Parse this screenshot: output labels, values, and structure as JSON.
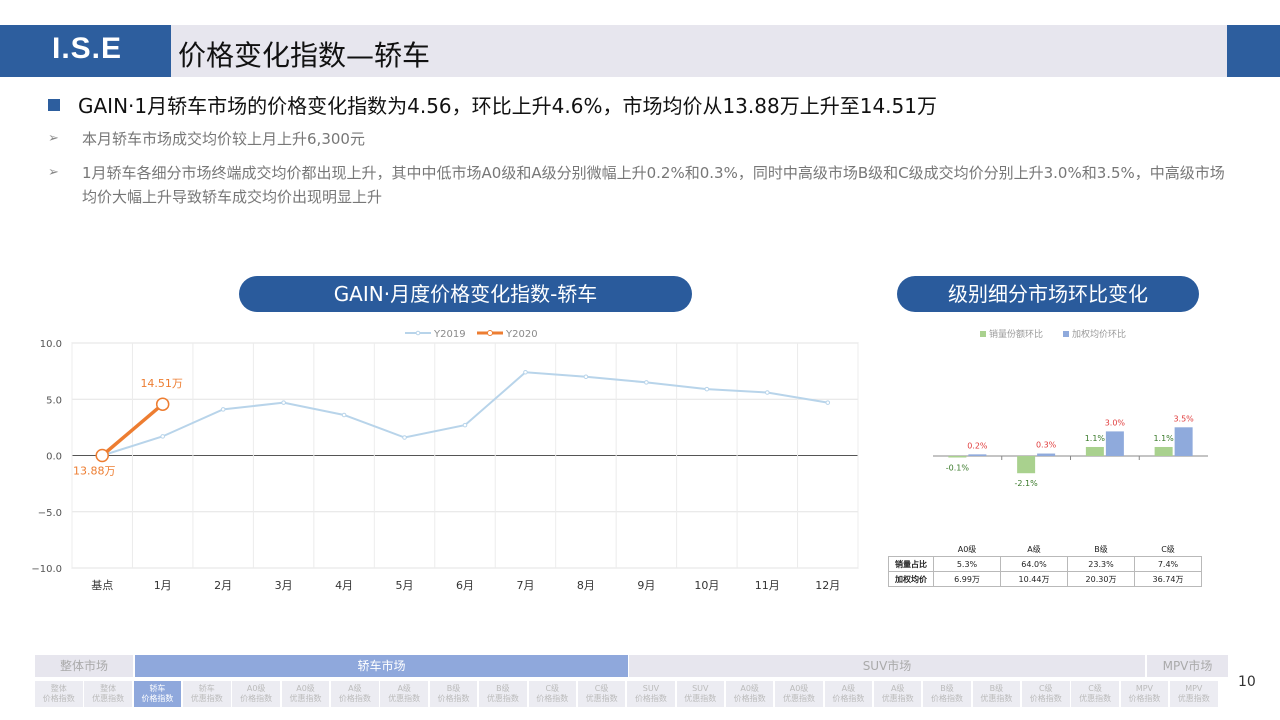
{
  "header": {
    "logo": "I.S.E",
    "title": "价格变化指数—轿车"
  },
  "bullets": {
    "main": "GAIN·1月轿车市场的价格变化指数为4.56，环比上升4.6%，市场均价从13.88万上升至14.51万",
    "sub1": "本月轿车市场成交均价较上月上升6,300元",
    "sub2": "1月轿车各细分市场终端成交均价都出现上升，其中中低市场A0级和A级分别微幅上升0.2%和0.3%，同时中高级市场B级和C级成交均价分别上升3.0%和3.5%，中高级市场均价大幅上升导致轿车成交均价出现明显上升",
    "arrow": "➢"
  },
  "pills": {
    "left": "GAIN·月度价格变化指数-轿车",
    "right": "级别细分市场环比变化"
  },
  "chart_data": [
    {
      "type": "line",
      "x": [
        "基点",
        "1月",
        "2月",
        "3月",
        "4月",
        "5月",
        "6月",
        "7月",
        "8月",
        "9月",
        "10月",
        "11月",
        "12月"
      ],
      "ylim": [
        -10,
        10
      ],
      "yticks": [
        "10.0",
        "5.0",
        "0.0",
        "−5.0",
        "−10.0"
      ],
      "series": [
        {
          "name": "Y2019",
          "color": "#b8d4ea",
          "values": [
            0,
            1.7,
            4.1,
            4.7,
            3.6,
            1.6,
            2.7,
            7.4,
            7.0,
            6.5,
            5.9,
            5.6,
            4.7
          ]
        },
        {
          "name": "Y2020",
          "color": "#ed7d31",
          "values": [
            0,
            4.56,
            null,
            null,
            null,
            null,
            null,
            null,
            null,
            null,
            null,
            null,
            null
          ]
        }
      ],
      "annotations": {
        "start": "13.88万",
        "end": "14.51万"
      },
      "grid": true
    },
    {
      "type": "bar",
      "categories": [
        "A0级",
        "A级",
        "B级",
        "C级"
      ],
      "series": [
        {
          "name": "销量份额环比",
          "color": "#a9d18e",
          "values": [
            -0.1,
            -2.1,
            1.1,
            1.1
          ],
          "labels": [
            "-0.1%",
            "-2.1%",
            "1.1%",
            "1.1%"
          ]
        },
        {
          "name": "加权均价环比",
          "color": "#8faadc",
          "values": [
            0.2,
            0.3,
            3.0,
            3.5
          ],
          "labels": [
            "0.2%",
            "0.3%",
            "3.0%",
            "3.5%"
          ]
        }
      ],
      "table": {
        "rows": [
          {
            "label": "销量占比",
            "values": [
              "5.3%",
              "64.0%",
              "23.3%",
              "7.4%"
            ]
          },
          {
            "label": "加权均价",
            "values": [
              "6.99万",
              "10.44万",
              "20.30万",
              "36.74万"
            ]
          }
        ]
      }
    }
  ],
  "nav": {
    "groups": [
      "整体市场",
      "轿车市场",
      "SUV市场",
      "MPV市场"
    ],
    "subs": [
      [
        "整体",
        "价格指数"
      ],
      [
        "整体",
        "优惠指数"
      ],
      [
        "轿车",
        "价格指数"
      ],
      [
        "轿车",
        "优惠指数"
      ],
      [
        "A0级",
        "价格指数"
      ],
      [
        "A0级",
        "优惠指数"
      ],
      [
        "A级",
        "价格指数"
      ],
      [
        "A级",
        "优惠指数"
      ],
      [
        "B级",
        "价格指数"
      ],
      [
        "B级",
        "优惠指数"
      ],
      [
        "C级",
        "价格指数"
      ],
      [
        "C级",
        "优惠指数"
      ],
      [
        "SUV",
        "价格指数"
      ],
      [
        "SUV",
        "优惠指数"
      ],
      [
        "A0级",
        "价格指数"
      ],
      [
        "A0级",
        "优惠指数"
      ],
      [
        "A级",
        "价格指数"
      ],
      [
        "A级",
        "优惠指数"
      ],
      [
        "B级",
        "价格指数"
      ],
      [
        "B级",
        "优惠指数"
      ],
      [
        "C级",
        "价格指数"
      ],
      [
        "C级",
        "优惠指数"
      ],
      [
        "MPV",
        "价格指数"
      ],
      [
        "MPV",
        "优惠指数"
      ]
    ],
    "page": "10"
  }
}
